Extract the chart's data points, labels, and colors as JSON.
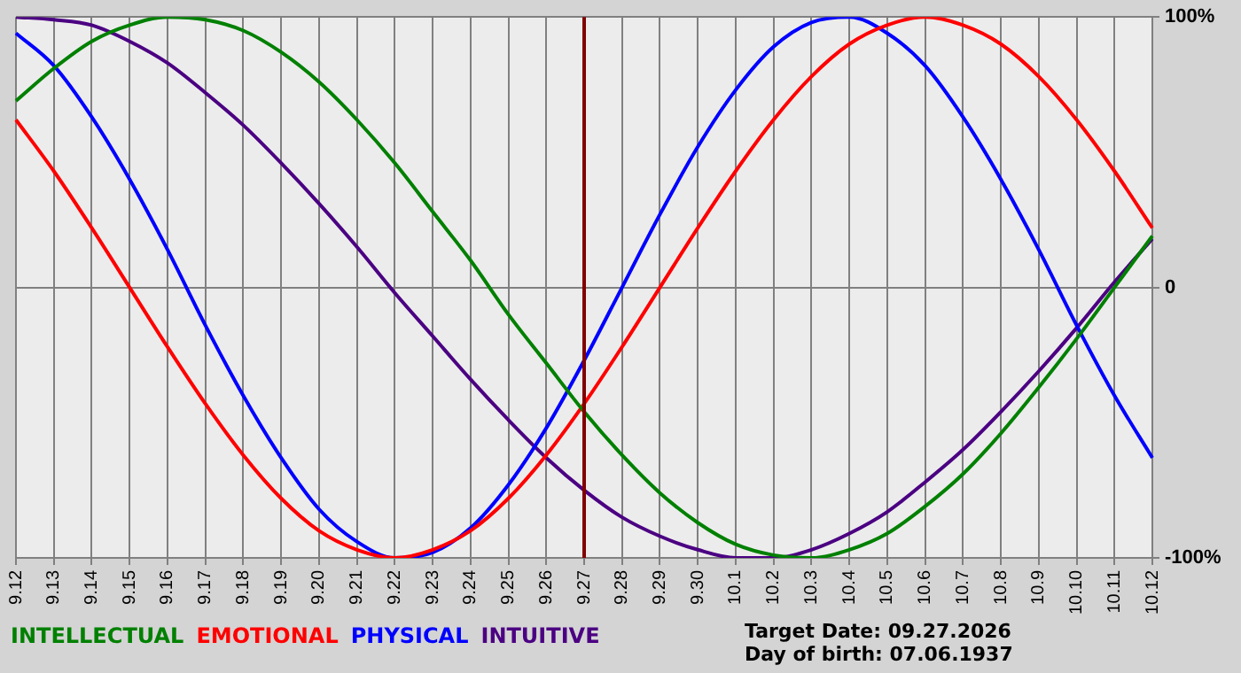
{
  "chart_data": {
    "type": "line",
    "categories": [
      "9.12",
      "9.13",
      "9.14",
      "9.15",
      "9.16",
      "9.17",
      "9.18",
      "9.19",
      "9.20",
      "9.21",
      "9.22",
      "9.23",
      "9.24",
      "9.25",
      "9.26",
      "9.27",
      "9.28",
      "9.29",
      "9.30",
      "10.1",
      "10.2",
      "10.3",
      "10.4",
      "10.5",
      "10.6",
      "10.7",
      "10.8",
      "10.9",
      "10.10",
      "10.11",
      "10.12"
    ],
    "series": [
      {
        "name": "INTELLECTUAL",
        "color": "#008000",
        "values": [
          69,
          81,
          91,
          97,
          100,
          99,
          95,
          87,
          76,
          62,
          46,
          28,
          10,
          -10,
          -28,
          -46,
          -62,
          -76,
          -87,
          -95,
          -99,
          -100,
          -97,
          -91,
          -81,
          -69,
          -54,
          -37,
          -19,
          0,
          19
        ]
      },
      {
        "name": "EMOTIONAL",
        "color": "#ff0000",
        "values": [
          62,
          43,
          22,
          0,
          -22,
          -43,
          -62,
          -78,
          -90,
          -97,
          -100,
          -97,
          -90,
          -78,
          -62,
          -43,
          -22,
          0,
          22,
          43,
          62,
          78,
          90,
          97,
          100,
          97,
          90,
          78,
          62,
          43,
          22
        ]
      },
      {
        "name": "PHYSICAL",
        "color": "#0000ff",
        "values": [
          94,
          82,
          63,
          40,
          14,
          -14,
          -40,
          -63,
          -82,
          -94,
          -100,
          -98,
          -89,
          -73,
          -52,
          -27,
          0,
          27,
          52,
          73,
          89,
          98,
          100,
          94,
          82,
          63,
          40,
          14,
          -14,
          -40,
          -63
        ]
      },
      {
        "name": "INTUITIVE",
        "color": "#4b0082",
        "values": [
          100,
          99,
          97,
          91,
          83,
          72,
          60,
          46,
          31,
          15,
          -2,
          -18,
          -34,
          -49,
          -63,
          -75,
          -85,
          -92,
          -97,
          -100,
          -100,
          -97,
          -91,
          -83,
          -72,
          -60,
          -46,
          -31,
          -15,
          2,
          18
        ]
      }
    ],
    "ylim": [
      -100,
      100
    ],
    "yticks": [
      {
        "value": 100,
        "label": "100%"
      },
      {
        "value": 0,
        "label": "0"
      },
      {
        "value": -100,
        "label": "-100%"
      }
    ],
    "ref_lines": [
      {
        "axis": "x",
        "value": "9.27",
        "color": "#800000"
      }
    ],
    "annotations": [
      "Target Date: 09.27.2026",
      "Day of birth: 07.06.1937"
    ],
    "grid": true,
    "legend": "bottom left",
    "marker": "none"
  }
}
